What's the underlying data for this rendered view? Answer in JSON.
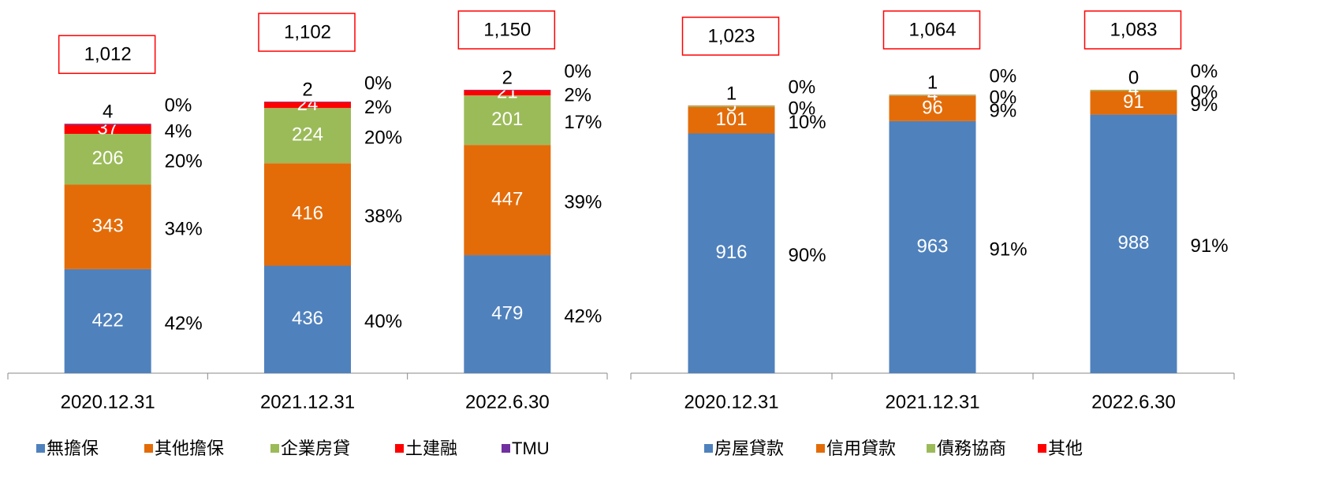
{
  "chart_data": [
    {
      "type": "stacked_bar",
      "categories": [
        "2020.12.31",
        "2021.12.31",
        "2022.6.30"
      ],
      "totals": [
        1012,
        1102,
        1150
      ],
      "total_labels": [
        "1,012",
        "1,102",
        "1,150"
      ],
      "series": [
        {
          "name": "無擔保",
          "color": "#4f81bd",
          "values": [
            422,
            436,
            479
          ],
          "share_labels": [
            "42%",
            "40%",
            "42%"
          ]
        },
        {
          "name": "其他擔保",
          "color": "#e36c09",
          "values": [
            343,
            416,
            447
          ],
          "share_labels": [
            "34%",
            "38%",
            "39%"
          ]
        },
        {
          "name": "企業房貸",
          "color": "#9bbb59",
          "values": [
            206,
            224,
            201
          ],
          "share_labels": [
            "20%",
            "20%",
            "17%"
          ]
        },
        {
          "name": "土建融",
          "color": "#ff0000",
          "values": [
            37,
            24,
            21
          ],
          "share_labels": [
            "4%",
            "2%",
            "2%"
          ]
        },
        {
          "name": "TMU",
          "color": "#7030a0",
          "values": [
            4,
            2,
            2
          ],
          "share_labels": [
            "0%",
            "0%",
            "0%"
          ]
        }
      ]
    },
    {
      "type": "stacked_bar",
      "categories": [
        "2020.12.31",
        "2021.12.31",
        "2022.6.30"
      ],
      "totals": [
        1023,
        1064,
        1083
      ],
      "total_labels": [
        "1,023",
        "1,064",
        "1,083"
      ],
      "series": [
        {
          "name": "房屋貸款",
          "color": "#4f81bd",
          "values": [
            916,
            963,
            988
          ],
          "share_labels": [
            "90%",
            "91%",
            "91%"
          ]
        },
        {
          "name": "信用貸款",
          "color": "#e36c09",
          "values": [
            101,
            96,
            91
          ],
          "share_labels": [
            "10%",
            "9%",
            "9%"
          ]
        },
        {
          "name": "債務協商",
          "color": "#9bbb59",
          "values": [
            5,
            4,
            4
          ],
          "share_labels": [
            "0%",
            "0%",
            "0%"
          ]
        },
        {
          "name": "其他",
          "color": "#ff0000",
          "values": [
            1,
            1,
            0
          ],
          "share_labels": [
            "0%",
            "0%",
            "0%"
          ]
        }
      ]
    }
  ]
}
